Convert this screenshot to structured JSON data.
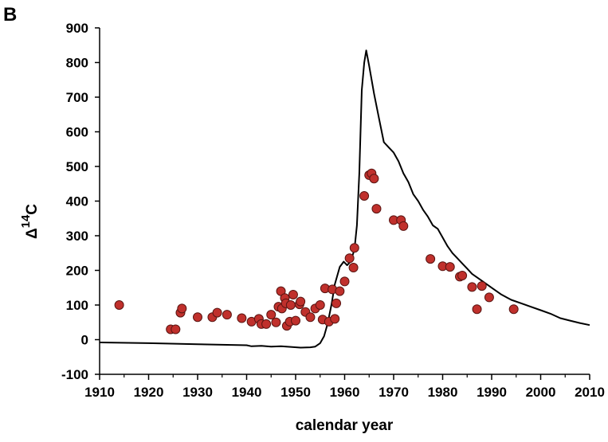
{
  "chart_data": {
    "type": "scatter",
    "panel_label": "B",
    "xlabel": "calendar year",
    "ylabel_main": "Δ",
    "ylabel_sup": "14",
    "ylabel_sub": "C",
    "xlim": [
      1910,
      2010
    ],
    "ylim": [
      -100,
      900
    ],
    "xticks": [
      "1910",
      "1920",
      "1930",
      "1940",
      "1950",
      "1960",
      "1970",
      "1980",
      "1990",
      "2000",
      "2010"
    ],
    "yticks": [
      "-100",
      "0",
      "100",
      "200",
      "300",
      "400",
      "500",
      "600",
      "700",
      "800",
      "900"
    ],
    "grid": false,
    "legend": "none",
    "colors": {
      "points": "#c0302c",
      "point_edge": "#5a1512",
      "line": "#000000"
    },
    "series": [
      {
        "kind": "line",
        "x": [
          1910,
          1920,
          1930,
          1940,
          1941,
          1943,
          1945,
          1947,
          1949,
          1951,
          1953,
          1954,
          1955,
          1955.8,
          1956.5,
          1957.3,
          1958,
          1959,
          1959.8,
          1960.5,
          1961.2,
          1962,
          1962.5,
          1963,
          1963.5,
          1964,
          1964.4,
          1965,
          1966,
          1967,
          1968,
          1969,
          1970,
          1971,
          1972,
          1973,
          1974,
          1975,
          1976,
          1977,
          1978,
          1979,
          1980,
          1981,
          1982,
          1983,
          1984,
          1985,
          1986,
          1988,
          1990,
          1992,
          1994,
          1996,
          1998,
          2000,
          2002,
          2004,
          2006,
          2008,
          2010
        ],
        "y": [
          -8,
          -10,
          -13,
          -16,
          -19,
          -18,
          -20,
          -19,
          -21,
          -23,
          -22,
          -20,
          -10,
          10,
          45,
          100,
          160,
          210,
          225,
          215,
          225,
          260,
          330,
          480,
          720,
          800,
          835,
          790,
          710,
          640,
          570,
          555,
          540,
          515,
          480,
          455,
          420,
          400,
          375,
          355,
          330,
          320,
          295,
          270,
          250,
          235,
          220,
          205,
          190,
          170,
          150,
          130,
          115,
          105,
          95,
          85,
          75,
          62,
          55,
          48,
          42
        ]
      },
      {
        "kind": "scatter",
        "x": [
          1914,
          1924.5,
          1925.5,
          1926.5,
          1926.8,
          1930,
          1933,
          1934,
          1936,
          1939,
          1941,
          1942.5,
          1943,
          1944,
          1945,
          1946,
          1946.5,
          1947,
          1947.2,
          1947.8,
          1948,
          1948.2,
          1948.8,
          1949,
          1949.5,
          1950,
          1950.8,
          1951,
          1952,
          1953,
          1954,
          1955,
          1955.5,
          1956,
          1956.8,
          1957.5,
          1958,
          1958.3,
          1959,
          1960,
          1961,
          1961.8,
          1962,
          1964,
          1965,
          1965.5,
          1966,
          1966.5,
          1970,
          1971.5,
          1972,
          1977.5,
          1980,
          1981.5,
          1983.5,
          1984,
          1986,
          1987,
          1988,
          1989.5,
          1994.5
        ],
        "y": [
          100,
          30,
          30,
          78,
          90,
          65,
          65,
          78,
          72,
          62,
          52,
          60,
          45,
          45,
          72,
          50,
          95,
          140,
          90,
          120,
          105,
          40,
          52,
          100,
          130,
          55,
          102,
          110,
          80,
          65,
          90,
          100,
          58,
          148,
          52,
          145,
          60,
          105,
          140,
          168,
          235,
          208,
          265,
          415,
          475,
          480,
          465,
          378,
          345,
          345,
          328,
          233,
          212,
          210,
          182,
          185,
          152,
          88,
          155,
          122,
          88
        ]
      }
    ]
  }
}
